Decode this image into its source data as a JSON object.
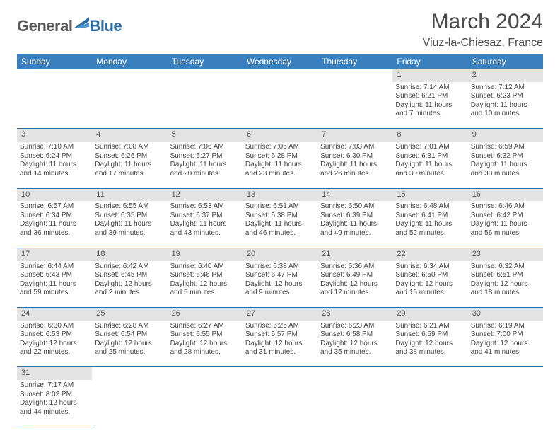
{
  "logo": {
    "part1": "General",
    "part2": "Blue"
  },
  "title": "March 2024",
  "location": "Viuz-la-Chiesaz, France",
  "colors": {
    "header_bg": "#3a80bf",
    "header_text": "#ffffff",
    "rule": "#2f6fa8",
    "daynum_bg": "#e3e3e3",
    "logo_gray": "#5a5a5a",
    "logo_blue": "#2f6fa8"
  },
  "day_headers": [
    "Sunday",
    "Monday",
    "Tuesday",
    "Wednesday",
    "Thursday",
    "Friday",
    "Saturday"
  ],
  "weeks": [
    [
      null,
      null,
      null,
      null,
      null,
      {
        "n": "1",
        "sunrise": "7:14 AM",
        "sunset": "6:21 PM",
        "daylight": "11 hours and 7 minutes."
      },
      {
        "n": "2",
        "sunrise": "7:12 AM",
        "sunset": "6:23 PM",
        "daylight": "11 hours and 10 minutes."
      }
    ],
    [
      {
        "n": "3",
        "sunrise": "7:10 AM",
        "sunset": "6:24 PM",
        "daylight": "11 hours and 14 minutes."
      },
      {
        "n": "4",
        "sunrise": "7:08 AM",
        "sunset": "6:26 PM",
        "daylight": "11 hours and 17 minutes."
      },
      {
        "n": "5",
        "sunrise": "7:06 AM",
        "sunset": "6:27 PM",
        "daylight": "11 hours and 20 minutes."
      },
      {
        "n": "6",
        "sunrise": "7:05 AM",
        "sunset": "6:28 PM",
        "daylight": "11 hours and 23 minutes."
      },
      {
        "n": "7",
        "sunrise": "7:03 AM",
        "sunset": "6:30 PM",
        "daylight": "11 hours and 26 minutes."
      },
      {
        "n": "8",
        "sunrise": "7:01 AM",
        "sunset": "6:31 PM",
        "daylight": "11 hours and 30 minutes."
      },
      {
        "n": "9",
        "sunrise": "6:59 AM",
        "sunset": "6:32 PM",
        "daylight": "11 hours and 33 minutes."
      }
    ],
    [
      {
        "n": "10",
        "sunrise": "6:57 AM",
        "sunset": "6:34 PM",
        "daylight": "11 hours and 36 minutes."
      },
      {
        "n": "11",
        "sunrise": "6:55 AM",
        "sunset": "6:35 PM",
        "daylight": "11 hours and 39 minutes."
      },
      {
        "n": "12",
        "sunrise": "6:53 AM",
        "sunset": "6:37 PM",
        "daylight": "11 hours and 43 minutes."
      },
      {
        "n": "13",
        "sunrise": "6:51 AM",
        "sunset": "6:38 PM",
        "daylight": "11 hours and 46 minutes."
      },
      {
        "n": "14",
        "sunrise": "6:50 AM",
        "sunset": "6:39 PM",
        "daylight": "11 hours and 49 minutes."
      },
      {
        "n": "15",
        "sunrise": "6:48 AM",
        "sunset": "6:41 PM",
        "daylight": "11 hours and 52 minutes."
      },
      {
        "n": "16",
        "sunrise": "6:46 AM",
        "sunset": "6:42 PM",
        "daylight": "11 hours and 56 minutes."
      }
    ],
    [
      {
        "n": "17",
        "sunrise": "6:44 AM",
        "sunset": "6:43 PM",
        "daylight": "11 hours and 59 minutes."
      },
      {
        "n": "18",
        "sunrise": "6:42 AM",
        "sunset": "6:45 PM",
        "daylight": "12 hours and 2 minutes."
      },
      {
        "n": "19",
        "sunrise": "6:40 AM",
        "sunset": "6:46 PM",
        "daylight": "12 hours and 5 minutes."
      },
      {
        "n": "20",
        "sunrise": "6:38 AM",
        "sunset": "6:47 PM",
        "daylight": "12 hours and 9 minutes."
      },
      {
        "n": "21",
        "sunrise": "6:36 AM",
        "sunset": "6:49 PM",
        "daylight": "12 hours and 12 minutes."
      },
      {
        "n": "22",
        "sunrise": "6:34 AM",
        "sunset": "6:50 PM",
        "daylight": "12 hours and 15 minutes."
      },
      {
        "n": "23",
        "sunrise": "6:32 AM",
        "sunset": "6:51 PM",
        "daylight": "12 hours and 18 minutes."
      }
    ],
    [
      {
        "n": "24",
        "sunrise": "6:30 AM",
        "sunset": "6:53 PM",
        "daylight": "12 hours and 22 minutes."
      },
      {
        "n": "25",
        "sunrise": "6:28 AM",
        "sunset": "6:54 PM",
        "daylight": "12 hours and 25 minutes."
      },
      {
        "n": "26",
        "sunrise": "6:27 AM",
        "sunset": "6:55 PM",
        "daylight": "12 hours and 28 minutes."
      },
      {
        "n": "27",
        "sunrise": "6:25 AM",
        "sunset": "6:57 PM",
        "daylight": "12 hours and 31 minutes."
      },
      {
        "n": "28",
        "sunrise": "6:23 AM",
        "sunset": "6:58 PM",
        "daylight": "12 hours and 35 minutes."
      },
      {
        "n": "29",
        "sunrise": "6:21 AM",
        "sunset": "6:59 PM",
        "daylight": "12 hours and 38 minutes."
      },
      {
        "n": "30",
        "sunrise": "6:19 AM",
        "sunset": "7:00 PM",
        "daylight": "12 hours and 41 minutes."
      }
    ],
    [
      {
        "n": "31",
        "sunrise": "7:17 AM",
        "sunset": "8:02 PM",
        "daylight": "12 hours and 44 minutes."
      },
      null,
      null,
      null,
      null,
      null,
      null
    ]
  ],
  "labels": {
    "sunrise": "Sunrise:",
    "sunset": "Sunset:",
    "daylight": "Daylight:"
  }
}
